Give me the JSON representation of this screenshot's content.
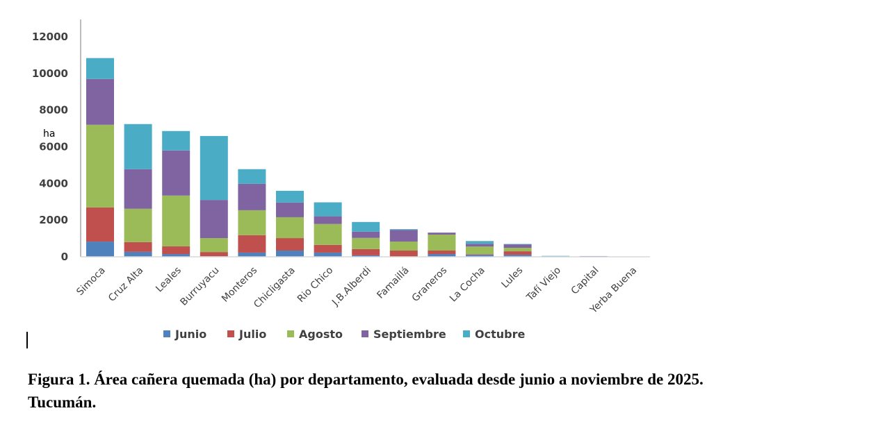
{
  "chart_data": {
    "type": "bar",
    "stacked": true,
    "title": "",
    "xlabel": "",
    "ylabel": "ha",
    "ylim": [
      0,
      12000
    ],
    "yticks": [
      0,
      2000,
      4000,
      6000,
      8000,
      10000,
      12000
    ],
    "grid": false,
    "legend_position": "bottom",
    "categories": [
      "Simoca",
      "Cruz Alta",
      "Leales",
      "Burruyacu",
      "Monteros",
      "Chicligasta",
      "Rio Chico",
      "J.B.Alberdi",
      "Famaillá",
      "Graneros",
      "La Cocha",
      "Lules",
      "Tafí Viejo",
      "Capital",
      "Yerba Buena"
    ],
    "series": [
      {
        "name": "Junio",
        "color": "#4f81bd",
        "values": [
          830,
          270,
          150,
          30,
          230,
          340,
          230,
          80,
          0,
          150,
          110,
          110,
          0,
          0,
          0
        ]
      },
      {
        "name": "Julio",
        "color": "#c0504d",
        "values": [
          1860,
          530,
          420,
          230,
          950,
          680,
          420,
          340,
          340,
          190,
          30,
          190,
          0,
          0,
          0
        ]
      },
      {
        "name": "Agosto",
        "color": "#9bbb59",
        "values": [
          4510,
          1820,
          2770,
          760,
          1360,
          1140,
          1140,
          610,
          490,
          870,
          420,
          190,
          0,
          0,
          0
        ]
      },
      {
        "name": "Septiembre",
        "color": "#8064a2",
        "values": [
          2500,
          2160,
          2460,
          2080,
          1440,
          800,
          420,
          340,
          640,
          110,
          150,
          190,
          0,
          40,
          0
        ]
      },
      {
        "name": "Octubre",
        "color": "#4bacc6",
        "values": [
          1140,
          2460,
          1060,
          3490,
          800,
          640,
          760,
          530,
          40,
          0,
          150,
          20,
          50,
          0,
          0
        ]
      }
    ]
  },
  "caption": {
    "line1": "Figura 1. Área cañera quemada (ha) por departamento, evaluada desde junio a noviembre de 2025.",
    "line2": "Tucumán."
  }
}
